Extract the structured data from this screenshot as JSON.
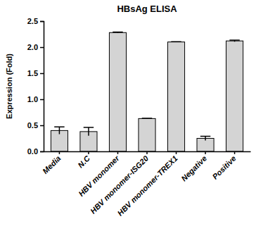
{
  "chart_data": {
    "type": "bar",
    "title": "HBsAg ELISA",
    "y_label": "Expression (Fold)",
    "categories": [
      "Media",
      "N.C",
      "HBV monomer",
      "HBV monomer-ISG20",
      "HBV monomer-TREX1",
      "Negative",
      "Positive"
    ],
    "values": [
      0.4,
      0.38,
      2.28,
      0.63,
      2.1,
      0.25,
      2.12
    ],
    "errors": [
      0.07,
      0.08,
      0.01,
      0.005,
      0.005,
      0.04,
      0.015
    ],
    "color": "#d4d4d4",
    "ylim": [
      0,
      2.5
    ],
    "yticks": [
      {
        "value": 0,
        "label": "0.0"
      },
      0.5,
      {
        "value": 1,
        "label": "1.0"
      },
      1.5,
      {
        "value": 2,
        "label": "2.0"
      },
      2.5
    ],
    "grid": false
  }
}
